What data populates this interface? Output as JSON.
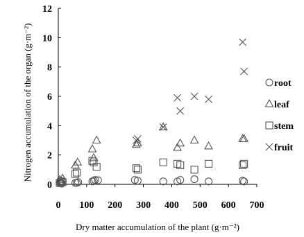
{
  "chart_data": {
    "type": "scatter",
    "xlabel": "Dry matter accumulation of the plant (g·m⁻²)",
    "ylabel": "Nitrogen accumulation of the organ (g·m⁻²)",
    "xlim": [
      0,
      700
    ],
    "ylim": [
      0,
      12
    ],
    "xticks": [
      "0",
      "100",
      "200",
      "300",
      "400",
      "500",
      "600",
      "700"
    ],
    "yticks": [
      "0",
      "2",
      "4",
      "6",
      "8",
      "10",
      "12"
    ],
    "legend_position": "right",
    "grid": false,
    "series": [
      {
        "name": "root",
        "marker": "circle",
        "points": [
          [
            5,
            0.1
          ],
          [
            8,
            0.15
          ],
          [
            12,
            0.05
          ],
          [
            15,
            0.2
          ],
          [
            60,
            0.1
          ],
          [
            65,
            0.1
          ],
          [
            70,
            0.15
          ],
          [
            120,
            0.2
          ],
          [
            125,
            0.25
          ],
          [
            130,
            0.3
          ],
          [
            140,
            0.28
          ],
          [
            270,
            0.3
          ],
          [
            280,
            0.25
          ],
          [
            370,
            0.2
          ],
          [
            420,
            0.2
          ],
          [
            430,
            0.3
          ],
          [
            480,
            0.35
          ],
          [
            530,
            0.2
          ],
          [
            650,
            0.25
          ],
          [
            655,
            0.2
          ]
        ]
      },
      {
        "name": "leaf",
        "marker": "triangle",
        "points": [
          [
            5,
            0.3
          ],
          [
            10,
            0.2
          ],
          [
            15,
            0.4
          ],
          [
            60,
            1.3
          ],
          [
            68,
            1.5
          ],
          [
            120,
            2.4
          ],
          [
            125,
            1.8
          ],
          [
            135,
            3.0
          ],
          [
            275,
            2.7
          ],
          [
            280,
            2.8
          ],
          [
            370,
            3.9
          ],
          [
            420,
            2.5
          ],
          [
            430,
            2.8
          ],
          [
            480,
            3.0
          ],
          [
            530,
            2.6
          ],
          [
            650,
            3.1
          ],
          [
            655,
            3.1
          ]
        ]
      },
      {
        "name": "stem",
        "marker": "square",
        "points": [
          [
            5,
            0.1
          ],
          [
            10,
            0.2
          ],
          [
            15,
            0.15
          ],
          [
            60,
            0.7
          ],
          [
            65,
            0.8
          ],
          [
            120,
            1.6
          ],
          [
            125,
            1.5
          ],
          [
            135,
            1.2
          ],
          [
            275,
            1.1
          ],
          [
            280,
            1.0
          ],
          [
            370,
            1.5
          ],
          [
            420,
            1.4
          ],
          [
            430,
            1.3
          ],
          [
            480,
            1.0
          ],
          [
            530,
            1.4
          ],
          [
            650,
            1.3
          ],
          [
            655,
            1.4
          ]
        ]
      },
      {
        "name": "fruit",
        "marker": "x",
        "points": [
          [
            275,
            3.0
          ],
          [
            280,
            3.1
          ],
          [
            370,
            3.9
          ],
          [
            420,
            5.9
          ],
          [
            430,
            5.0
          ],
          [
            480,
            6.0
          ],
          [
            530,
            5.8
          ],
          [
            650,
            9.7
          ],
          [
            655,
            7.7
          ]
        ]
      }
    ]
  }
}
